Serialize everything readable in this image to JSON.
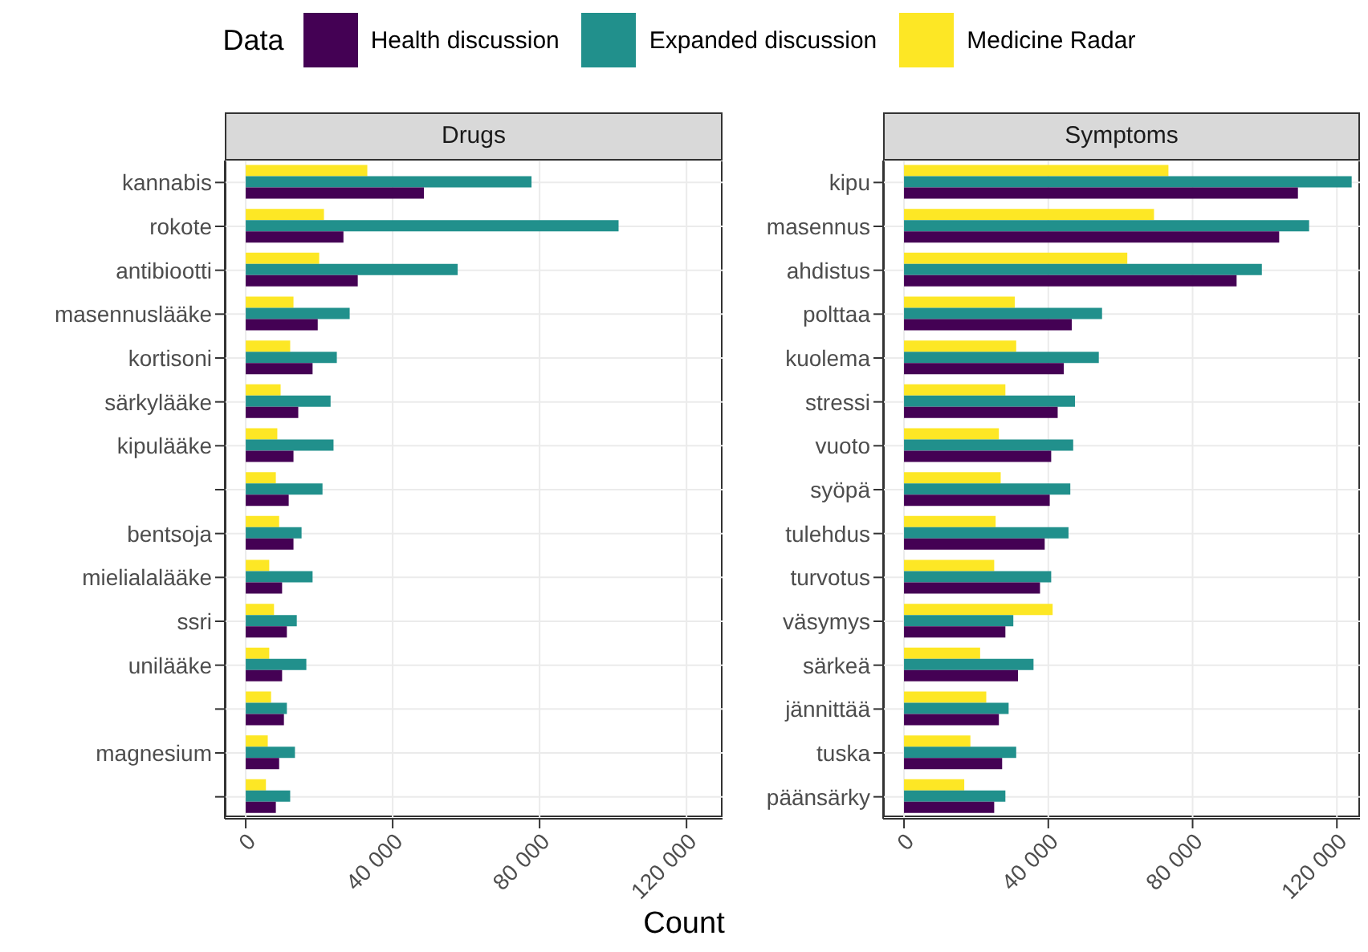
{
  "chart_data": [
    {
      "type": "bar",
      "orientation": "horizontal",
      "title": "Drugs",
      "xlabel": "Count",
      "legend": "top",
      "legend_title": "Data",
      "grid": true,
      "categories": [
        "kannabis",
        "rokote",
        "antibiootti",
        "masennuslääke",
        "kortisoni",
        "särkylääke",
        "kipulääke",
        null,
        "bentsoja",
        "mielialalääke",
        "ssri",
        "unilääke",
        null,
        "magnesium",
        null
      ],
      "xlim": [
        -5700,
        129800
      ],
      "xticks": [
        0,
        {
          "value": 40000,
          "label": "40 000"
        },
        {
          "value": 80000,
          "label": "80 000"
        },
        {
          "value": 120000,
          "label": "120 000"
        }
      ],
      "series": [
        {
          "name": "Health discussion",
          "color": "#440154",
          "values": [
            48500,
            26600,
            30500,
            19600,
            18200,
            14300,
            13000,
            11700,
            13000,
            9900,
            11200,
            9900,
            10400,
            9100,
            8200
          ]
        },
        {
          "name": "Expanded discussion",
          "color": "#21908c",
          "values": [
            77800,
            101500,
            57700,
            28300,
            24800,
            23100,
            23900,
            20900,
            15200,
            18200,
            13900,
            16500,
            11200,
            13400,
            12100
          ]
        },
        {
          "name": "Medicine Radar",
          "color": "#fde725",
          "values": [
            33100,
            21300,
            20000,
            13000,
            12100,
            9500,
            8600,
            8200,
            9100,
            6400,
            7700,
            6400,
            6900,
            6000,
            5500
          ]
        }
      ]
    },
    {
      "type": "bar",
      "orientation": "horizontal",
      "title": "Symptoms",
      "grid": true,
      "categories": [
        "kipu",
        "masennus",
        "ahdistus",
        "polttaa",
        "kuolema",
        "stressi",
        "vuoto",
        "syöpä",
        "tulehdus",
        "turvotus",
        "väsymys",
        "särkeä",
        "jännittää",
        "tuska",
        "päänsärky"
      ],
      "xlim": [
        -5800,
        126400
      ],
      "xticks": [
        0,
        {
          "value": 40000,
          "label": "40 000"
        },
        {
          "value": 80000,
          "label": "80 000"
        },
        {
          "value": 120000,
          "label": "120 000"
        }
      ],
      "series": [
        {
          "color": "#440154",
          "values": [
            109200,
            104000,
            92200,
            46500,
            44300,
            42600,
            40800,
            40400,
            39000,
            37700,
            28100,
            31600,
            26300,
            27200,
            25000
          ]
        },
        {
          "color": "#21908c",
          "values": [
            124100,
            112300,
            99200,
            54900,
            54000,
            47400,
            46900,
            46100,
            45600,
            40800,
            30300,
            35900,
            29000,
            31100,
            28100
          ]
        },
        {
          "color": "#fde725",
          "values": [
            73300,
            69300,
            61900,
            30700,
            31100,
            28100,
            26300,
            26800,
            25400,
            25000,
            41200,
            21100,
            22800,
            18400,
            16700
          ]
        }
      ]
    }
  ]
}
